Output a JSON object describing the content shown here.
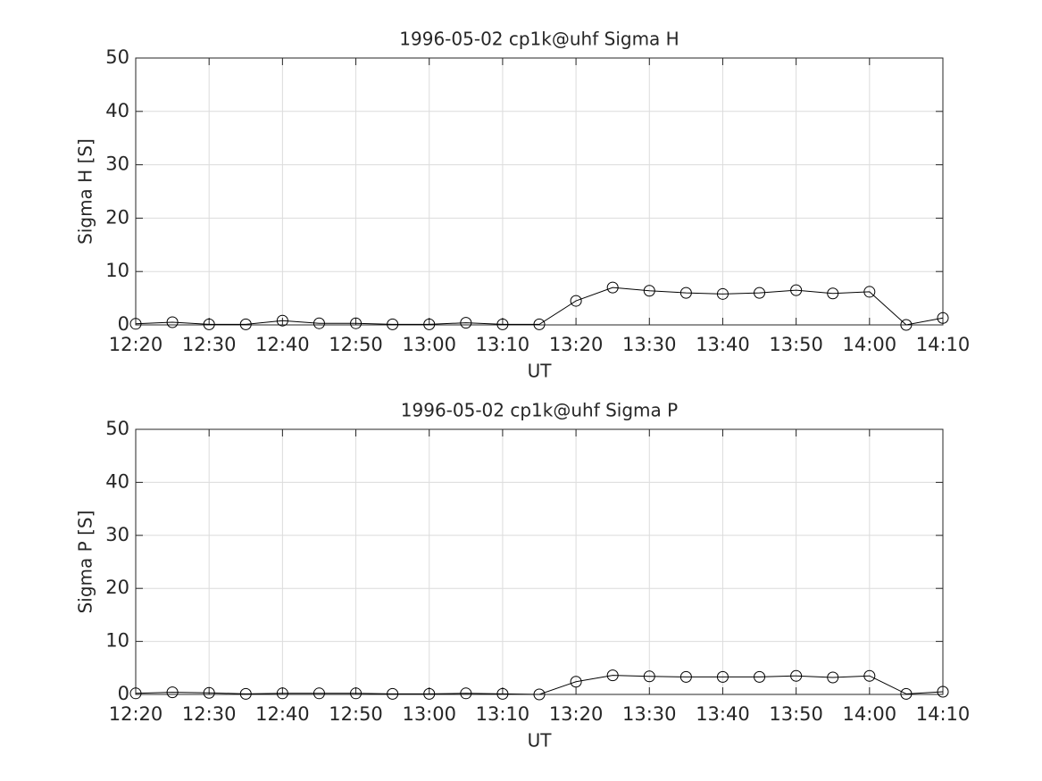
{
  "chart_data": [
    {
      "type": "line",
      "title": "1996-05-02  cp1k@uhf Sigma H",
      "xlabel": "UT",
      "ylabel": "Sigma H [S]",
      "x": [
        "12:20",
        "12:25",
        "12:30",
        "12:35",
        "12:40",
        "12:45",
        "12:50",
        "12:55",
        "13:00",
        "13:05",
        "13:10",
        "13:15",
        "13:20",
        "13:25",
        "13:30",
        "13:35",
        "13:40",
        "13:45",
        "13:50",
        "13:55",
        "14:00",
        "14:05",
        "14:10"
      ],
      "values": [
        0.2,
        0.5,
        0.1,
        0.1,
        0.8,
        0.3,
        0.3,
        0.1,
        0.1,
        0.4,
        0.1,
        0.1,
        4.5,
        7.0,
        6.4,
        6.0,
        5.8,
        6.0,
        6.5,
        5.9,
        6.2,
        0.0,
        1.3
      ],
      "color": "#000000",
      "marker": "circle",
      "xlim": [
        "12:20",
        "14:10"
      ],
      "xticks": [
        "12:20",
        "12:30",
        "12:40",
        "12:50",
        "13:00",
        "13:10",
        "13:20",
        "13:30",
        "13:40",
        "13:50",
        "14:00",
        "14:10"
      ],
      "ylim": [
        0,
        50
      ],
      "yticks": [
        0,
        10,
        20,
        30,
        40,
        50
      ],
      "grid": true
    },
    {
      "type": "line",
      "title": "1996-05-02  cp1k@uhf Sigma P",
      "xlabel": "UT",
      "ylabel": "Sigma P [S]",
      "x": [
        "12:20",
        "12:25",
        "12:30",
        "12:35",
        "12:40",
        "12:45",
        "12:50",
        "12:55",
        "13:00",
        "13:05",
        "13:10",
        "13:15",
        "13:20",
        "13:25",
        "13:30",
        "13:35",
        "13:40",
        "13:45",
        "13:50",
        "13:55",
        "14:00",
        "14:05",
        "14:10"
      ],
      "values": [
        0.2,
        0.4,
        0.3,
        0.1,
        0.2,
        0.2,
        0.2,
        0.1,
        0.1,
        0.2,
        0.1,
        0.0,
        2.4,
        3.6,
        3.4,
        3.3,
        3.3,
        3.3,
        3.5,
        3.2,
        3.5,
        0.1,
        0.5
      ],
      "color": "#000000",
      "marker": "circle",
      "xlim": [
        "12:20",
        "14:10"
      ],
      "xticks": [
        "12:20",
        "12:30",
        "12:40",
        "12:50",
        "13:00",
        "13:10",
        "13:20",
        "13:30",
        "13:40",
        "13:50",
        "14:00",
        "14:10"
      ],
      "ylim": [
        0,
        50
      ],
      "yticks": [
        0,
        10,
        20,
        30,
        40,
        50
      ],
      "grid": true
    }
  ]
}
